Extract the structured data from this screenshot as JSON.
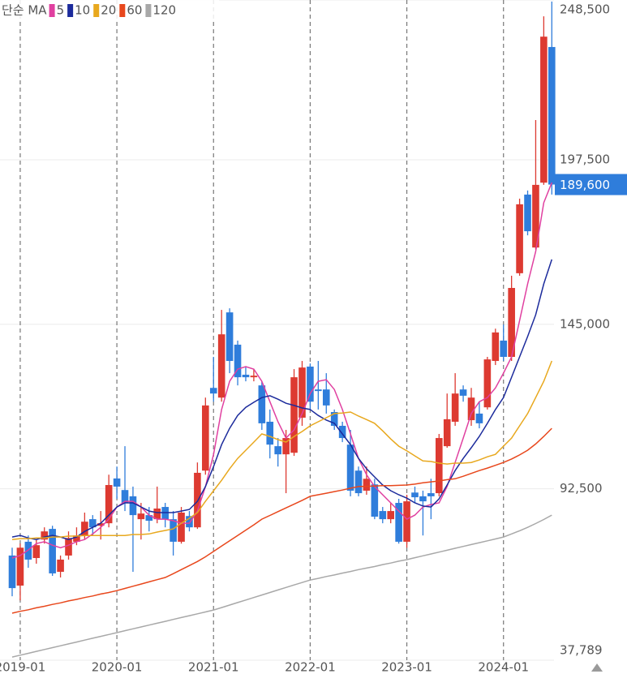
{
  "chart_data": {
    "type": "candlestick",
    "legend_title": "단순 MA",
    "categories": [
      null,
      "2019-01",
      null,
      null,
      null,
      null,
      null,
      null,
      null,
      null,
      null,
      null,
      null,
      "2020-01",
      null,
      null,
      null,
      null,
      null,
      null,
      null,
      null,
      null,
      null,
      null,
      "2021-01",
      null,
      null,
      null,
      null,
      null,
      null,
      null,
      null,
      null,
      null,
      null,
      "2022-01",
      null,
      null,
      null,
      null,
      null,
      null,
      null,
      null,
      null,
      null,
      null,
      "2023-01",
      null,
      null,
      null,
      null,
      null,
      null,
      null,
      null,
      null,
      null,
      null,
      "2024-01",
      null,
      null,
      null,
      null,
      null,
      null
    ],
    "open": [
      71200,
      61600,
      75600,
      70400,
      76300,
      79700,
      66000,
      71200,
      75600,
      77600,
      82800,
      80700,
      81500,
      95800,
      92100,
      90100,
      82800,
      84100,
      82800,
      86700,
      82800,
      75600,
      83800,
      80200,
      98300,
      124700,
      121600,
      148800,
      138500,
      128900,
      128100,
      125500,
      113900,
      106100,
      103500,
      104000,
      115200,
      131500,
      124200,
      124200,
      117000,
      112600,
      106600,
      98300,
      91900,
      93900,
      85400,
      82800,
      88000,
      75600,
      91300,
      90100,
      91100,
      91100,
      106100,
      113900,
      124200,
      114400,
      116500,
      118500,
      133300,
      139800,
      134600,
      161300,
      186400,
      169500,
      190200,
      233500
    ],
    "high": [
      73700,
      75000,
      77600,
      76300,
      80200,
      80700,
      71200,
      78900,
      80200,
      84900,
      84100,
      85400,
      97000,
      99600,
      106100,
      93200,
      88000,
      86700,
      93200,
      88000,
      85400,
      86700,
      85400,
      100900,
      121600,
      134600,
      149600,
      150100,
      139800,
      131500,
      130700,
      126800,
      117800,
      108700,
      111300,
      130700,
      133300,
      132500,
      133300,
      129400,
      117800,
      113900,
      111300,
      99600,
      99600,
      95700,
      86700,
      88000,
      89300,
      90600,
      93200,
      91900,
      95700,
      110000,
      122900,
      129400,
      125500,
      124700,
      120300,
      134600,
      143600,
      144900,
      160500,
      185100,
      187700,
      210200,
      243300,
      248000
    ],
    "low": [
      58200,
      56900,
      67300,
      68600,
      75000,
      64700,
      64200,
      69900,
      74500,
      76300,
      77600,
      76300,
      80200,
      89300,
      85400,
      66000,
      76300,
      78900,
      81500,
      80200,
      71200,
      75000,
      78900,
      79700,
      97000,
      120300,
      120300,
      129400,
      125500,
      126800,
      126800,
      111300,
      102200,
      99600,
      91100,
      103000,
      112600,
      117800,
      117800,
      116500,
      111300,
      107400,
      90100,
      90100,
      90600,
      82800,
      81500,
      81500,
      75000,
      73700,
      88000,
      77600,
      82800,
      90100,
      105600,
      112600,
      120300,
      112600,
      111800,
      117800,
      132000,
      133300,
      133300,
      160500,
      173400,
      168800,
      189500,
      186400
    ],
    "close": [
      60800,
      73700,
      69900,
      74500,
      78900,
      65500,
      69900,
      76800,
      77600,
      82000,
      80200,
      81500,
      93700,
      93200,
      88000,
      84100,
      84600,
      82300,
      86200,
      82800,
      75600,
      84900,
      80200,
      97600,
      119100,
      122900,
      141800,
      133300,
      128100,
      128100,
      128600,
      113400,
      106600,
      103500,
      108700,
      128100,
      131200,
      120300,
      123700,
      119100,
      112600,
      108700,
      91900,
      91100,
      95700,
      83600,
      82800,
      85400,
      75600,
      88500,
      89800,
      88500,
      90100,
      108700,
      114700,
      122900,
      122200,
      121600,
      113400,
      133800,
      142400,
      134600,
      156600,
      183300,
      174700,
      189500,
      236800,
      189600
    ],
    "last_close_label": "189,600",
    "up_color": "#dd3a31",
    "down_color": "#2f7ddb",
    "series": [
      {
        "name": "5",
        "color": "#e040a0",
        "values": [
          70400,
          71200,
          73000,
          75000,
          75600,
          74500,
          73700,
          74500,
          75600,
          76300,
          78100,
          80200,
          82800,
          86700,
          88500,
          88500,
          86700,
          84100,
          82800,
          82800,
          82300,
          81500,
          81500,
          85400,
          93200,
          103500,
          117800,
          126800,
          130700,
          131500,
          130700,
          126800,
          120300,
          113900,
          108700,
          111300,
          116500,
          122900,
          126800,
          127300,
          124200,
          117800,
          110000,
          102200,
          97000,
          93200,
          90600,
          88000,
          85400,
          82800,
          84100,
          86700,
          87500,
          88000,
          93200,
          100900,
          108700,
          116500,
          120300,
          121600,
          124700,
          129400,
          134600,
          146200,
          157900,
          168200,
          183800,
          190200
        ]
      },
      {
        "name": "10",
        "color": "#1c2b9c",
        "values": [
          77100,
          77600,
          76800,
          76300,
          77100,
          77600,
          77100,
          76300,
          77100,
          78900,
          80200,
          81500,
          84100,
          86700,
          88000,
          88000,
          86700,
          85400,
          84900,
          84900,
          84900,
          85400,
          85900,
          88500,
          93200,
          99600,
          106600,
          111800,
          115900,
          118500,
          120100,
          121600,
          122200,
          121100,
          119800,
          119100,
          118300,
          117800,
          115900,
          114400,
          113400,
          110000,
          106600,
          102200,
          98900,
          96300,
          93700,
          91900,
          90600,
          89500,
          88000,
          87000,
          86700,
          89300,
          93700,
          98300,
          102200,
          105600,
          109200,
          113400,
          117800,
          121600,
          128100,
          134600,
          141100,
          148000,
          157900,
          165700
        ]
      },
      {
        "name": "20",
        "color": "#e8a81e",
        "values": [
          76300,
          76600,
          76600,
          76800,
          76800,
          77100,
          77100,
          77400,
          77400,
          77600,
          77600,
          77600,
          77600,
          77600,
          77600,
          77900,
          77900,
          78100,
          78700,
          79200,
          79700,
          81500,
          83100,
          84900,
          88500,
          91900,
          95200,
          98900,
          102200,
          104800,
          107400,
          110000,
          109200,
          108200,
          107400,
          109200,
          110800,
          112600,
          113900,
          115200,
          116500,
          116700,
          117000,
          115700,
          114600,
          113400,
          111000,
          108400,
          106100,
          104600,
          103000,
          101400,
          101200,
          100700,
          100400,
          100700,
          100700,
          100900,
          101700,
          102700,
          103500,
          106100,
          108700,
          112600,
          116500,
          121600,
          126800,
          133300
        ]
      },
      {
        "name": "60",
        "color": "#e8471c",
        "values": [
          52800,
          53400,
          53900,
          54500,
          55000,
          55600,
          56100,
          56700,
          57200,
          57800,
          58300,
          58900,
          59400,
          60000,
          60700,
          61400,
          62100,
          62800,
          63500,
          64200,
          65400,
          66700,
          68000,
          69300,
          70800,
          72500,
          74200,
          75900,
          77600,
          79300,
          81000,
          82800,
          84000,
          85200,
          86400,
          87600,
          88800,
          90100,
          90600,
          91100,
          91600,
          92100,
          92700,
          93200,
          93300,
          93400,
          93500,
          93500,
          93600,
          93700,
          94000,
          94400,
          94700,
          95000,
          95400,
          95700,
          96500,
          97400,
          98300,
          99100,
          100000,
          100900,
          102000,
          103300,
          104800,
          106800,
          109200,
          111800
        ]
      },
      {
        "name": "120",
        "color": "#a8a8a8",
        "values": [
          38800,
          39400,
          40000,
          40600,
          41200,
          41800,
          42400,
          43000,
          43600,
          44200,
          44800,
          45400,
          46000,
          46600,
          47200,
          47800,
          48400,
          49000,
          49600,
          50200,
          50800,
          51400,
          52000,
          52600,
          53200,
          53800,
          54600,
          55400,
          56200,
          57000,
          57800,
          58600,
          59400,
          60200,
          61000,
          61800,
          62600,
          63400,
          63900,
          64500,
          65000,
          65600,
          66100,
          66700,
          67200,
          67700,
          68300,
          68800,
          69400,
          69900,
          70500,
          71100,
          71700,
          72300,
          72900,
          73500,
          74100,
          74700,
          75300,
          75900,
          76500,
          77100,
          78100,
          79100,
          80200,
          81400,
          82700,
          84100
        ]
      }
    ],
    "ylim": [
      37789,
      248500
    ],
    "yticks": [
      {
        "value": 37789,
        "label": "37,789"
      },
      {
        "value": 92500,
        "label": "92,500"
      },
      {
        "value": 145000,
        "label": "145,000"
      },
      {
        "value": 197500,
        "label": "197,500"
      },
      {
        "value": 248500,
        "label": "248,500"
      }
    ],
    "grid": true
  }
}
